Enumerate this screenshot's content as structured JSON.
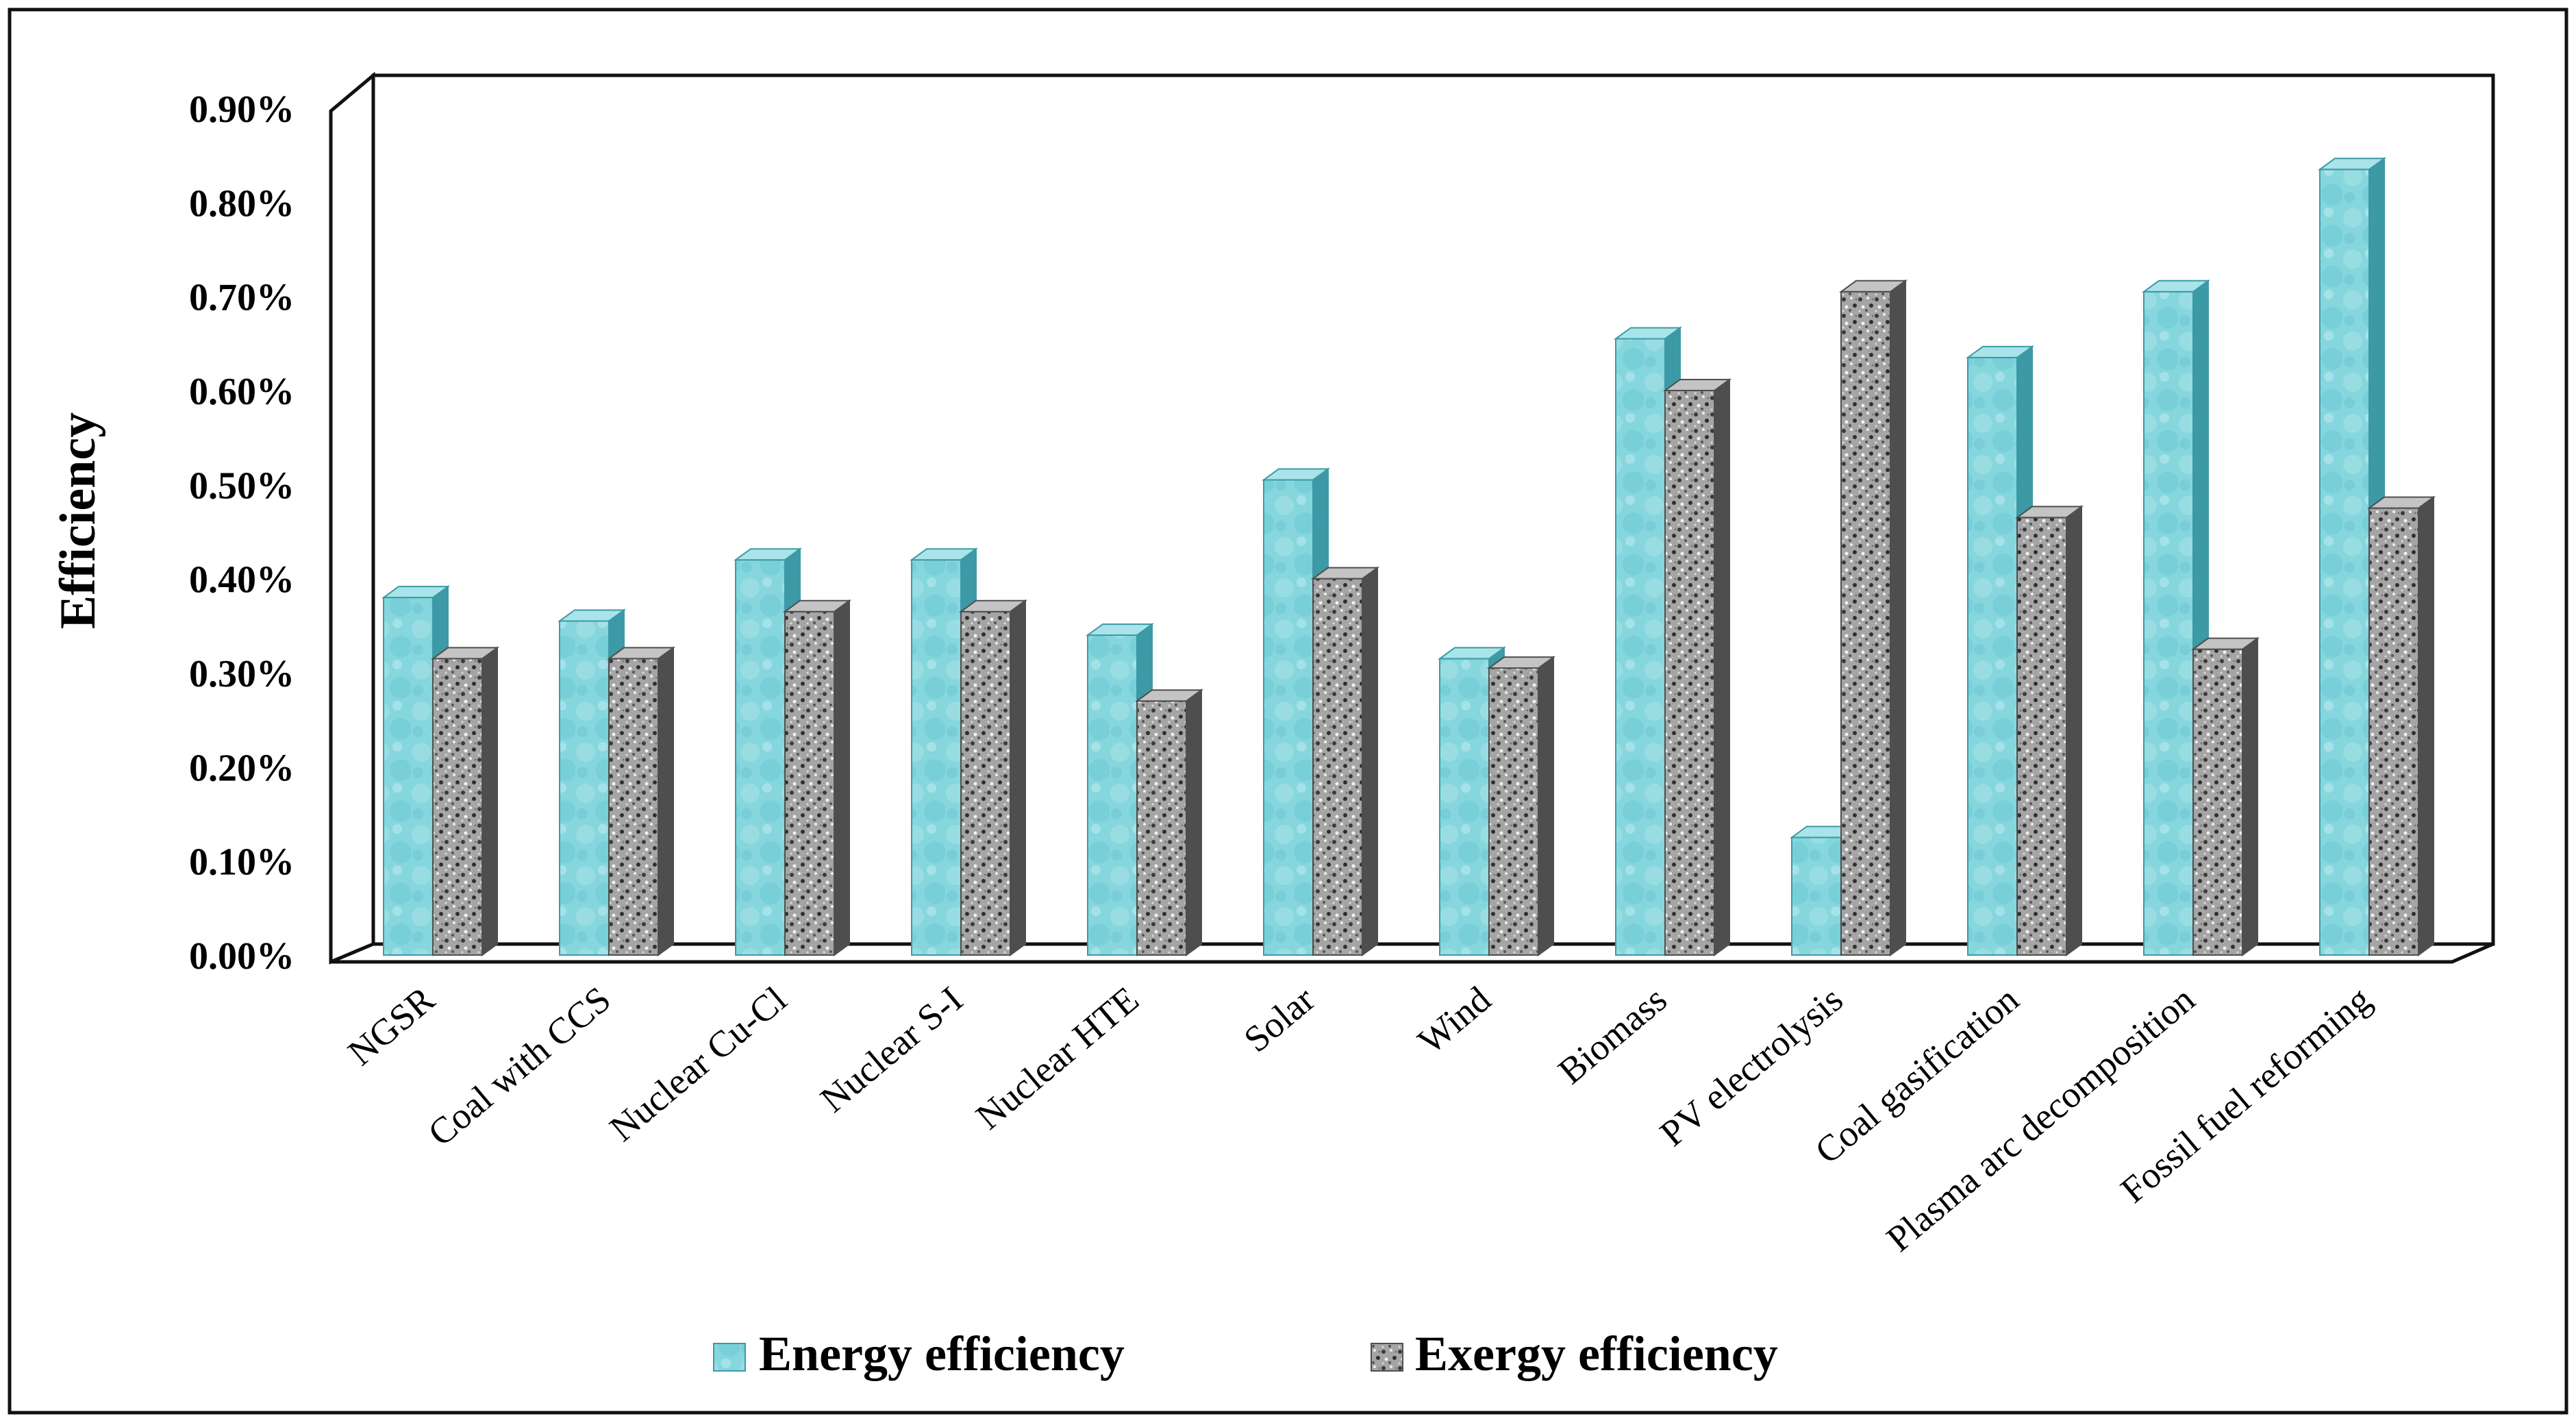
{
  "chart_data": {
    "type": "bar",
    "title": "",
    "xlabel": "",
    "ylabel": "Efficiency",
    "ylim": [
      0,
      0.9
    ],
    "y_ticks": [
      "0.00%",
      "0.10%",
      "0.20%",
      "0.30%",
      "0.40%",
      "0.50%",
      "0.60%",
      "0.70%",
      "0.80%",
      "0.90%"
    ],
    "y_tick_values": [
      0,
      0.1,
      0.2,
      0.3,
      0.4,
      0.5,
      0.6,
      0.7,
      0.8,
      0.9
    ],
    "categories": [
      "NGSR",
      "Coal with CCS",
      "Nuclear Cu-Cl",
      "Nuclear S-I",
      "Nuclear HTE",
      "Solar",
      "Wind",
      "Biomass",
      "PV electrolysis",
      "Coal gasification",
      "Plasma arc decomposition",
      "Fossil fuel reforming"
    ],
    "series": [
      {
        "name": "Energy efficiency",
        "values": [
          0.38,
          0.355,
          0.42,
          0.42,
          0.34,
          0.505,
          0.315,
          0.655,
          0.125,
          0.635,
          0.705,
          0.835
        ]
      },
      {
        "name": "Exergy efficiency",
        "values": [
          0.315,
          0.315,
          0.365,
          0.365,
          0.27,
          0.4,
          0.305,
          0.6,
          0.705,
          0.465,
          0.325,
          0.475
        ]
      }
    ],
    "legend_position": "bottom-center",
    "grid": false
  },
  "colors": {
    "energy_front": "#7fd3dc",
    "energy_side": "#3c9aa6",
    "energy_top": "#a9e4ea",
    "exergy_front": "#9a9a9a",
    "exergy_side": "#4e4e4e",
    "exergy_top": "#c4c4c4"
  }
}
